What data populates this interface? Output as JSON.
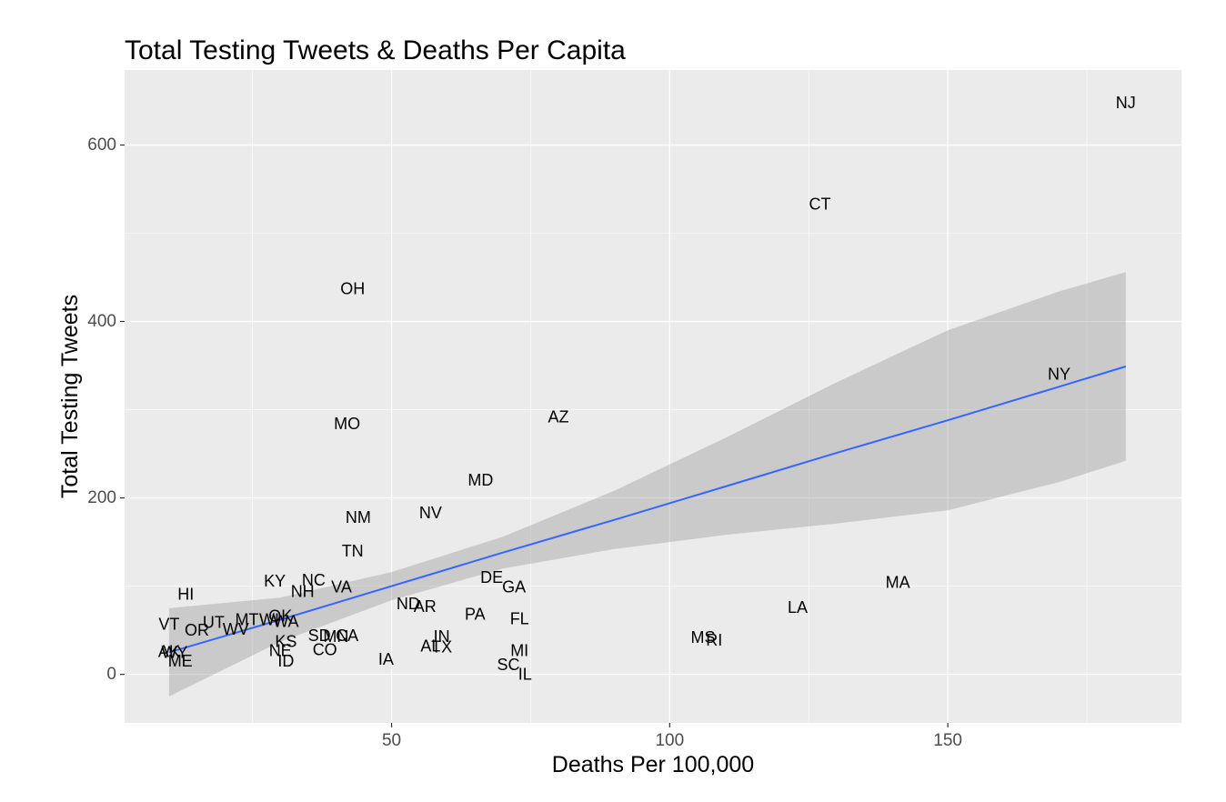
{
  "chart_data": {
    "type": "scatter",
    "title": "Total Testing Tweets & Deaths Per Capita",
    "xlabel": "Deaths Per 100,000",
    "ylabel": "Total Testing Tweets",
    "xlim": [
      2,
      192
    ],
    "ylim": [
      -55,
      685
    ],
    "x_ticks": [
      50,
      100,
      150
    ],
    "y_ticks": [
      0,
      200,
      400,
      600
    ],
    "grid": true,
    "points": [
      {
        "label": "NJ",
        "x": 182,
        "y": 648
      },
      {
        "label": "CT",
        "x": 127,
        "y": 533
      },
      {
        "label": "OH",
        "x": 43,
        "y": 437
      },
      {
        "label": "NY",
        "x": 170,
        "y": 340
      },
      {
        "label": "AZ",
        "x": 80,
        "y": 292
      },
      {
        "label": "MO",
        "x": 42,
        "y": 284
      },
      {
        "label": "MD",
        "x": 66,
        "y": 220
      },
      {
        "label": "NV",
        "x": 57,
        "y": 183
      },
      {
        "label": "NM",
        "x": 44,
        "y": 178
      },
      {
        "label": "TN",
        "x": 43,
        "y": 140
      },
      {
        "label": "KY",
        "x": 29,
        "y": 106
      },
      {
        "label": "NC",
        "x": 36,
        "y": 107
      },
      {
        "label": "VA",
        "x": 41,
        "y": 99
      },
      {
        "label": "NH",
        "x": 34,
        "y": 94
      },
      {
        "label": "DE",
        "x": 68,
        "y": 110
      },
      {
        "label": "GA",
        "x": 72,
        "y": 99
      },
      {
        "label": "MA",
        "x": 141,
        "y": 104
      },
      {
        "label": "HI",
        "x": 13,
        "y": 91
      },
      {
        "label": "ND",
        "x": 53,
        "y": 80
      },
      {
        "label": "AR",
        "x": 56,
        "y": 77
      },
      {
        "label": "LA",
        "x": 123,
        "y": 76
      },
      {
        "label": "PA",
        "x": 65,
        "y": 68
      },
      {
        "label": "FL",
        "x": 73,
        "y": 63
      },
      {
        "label": "OK",
        "x": 30,
        "y": 66
      },
      {
        "label": "WI",
        "x": 28,
        "y": 62
      },
      {
        "label": "MT",
        "x": 24,
        "y": 62
      },
      {
        "label": "UT",
        "x": 18,
        "y": 59
      },
      {
        "label": "VT",
        "x": 10,
        "y": 57
      },
      {
        "label": "WA",
        "x": 31,
        "y": 60
      },
      {
        "label": "OR",
        "x": 15,
        "y": 50
      },
      {
        "label": "WV",
        "x": 22,
        "y": 51
      },
      {
        "label": "SD",
        "x": 37,
        "y": 44
      },
      {
        "label": "MN",
        "x": 40,
        "y": 43
      },
      {
        "label": "CA",
        "x": 42,
        "y": 44
      },
      {
        "label": "MS",
        "x": 106,
        "y": 42
      },
      {
        "label": "RI",
        "x": 108,
        "y": 39
      },
      {
        "label": "KS",
        "x": 31,
        "y": 37
      },
      {
        "label": "IN",
        "x": 59,
        "y": 43
      },
      {
        "label": "AL",
        "x": 57,
        "y": 32
      },
      {
        "label": "TX",
        "x": 59,
        "y": 31
      },
      {
        "label": "NE",
        "x": 30,
        "y": 27
      },
      {
        "label": "CO",
        "x": 38,
        "y": 28
      },
      {
        "label": "MI",
        "x": 73,
        "y": 27
      },
      {
        "label": "AK",
        "x": 10,
        "y": 26
      },
      {
        "label": "WY",
        "x": 11,
        "y": 25
      },
      {
        "label": "ID",
        "x": 31,
        "y": 15
      },
      {
        "label": "ME",
        "x": 12,
        "y": 15
      },
      {
        "label": "IA",
        "x": 49,
        "y": 17
      },
      {
        "label": "SC",
        "x": 71,
        "y": 11
      },
      {
        "label": "IL",
        "x": 74,
        "y": 0
      }
    ],
    "fit": {
      "x": [
        10,
        30,
        50,
        70,
        90,
        110,
        130,
        150,
        170,
        182
      ],
      "y": [
        25,
        62,
        100,
        138,
        175,
        213,
        251,
        288,
        326,
        349
      ],
      "ci_lower": [
        -25,
        37,
        84,
        120,
        142,
        158,
        171,
        186,
        218,
        242
      ],
      "ci_upper": [
        75,
        87,
        116,
        156,
        208,
        268,
        331,
        390,
        434,
        456
      ]
    },
    "colors": {
      "panel": "#ebebeb",
      "grid": "#ffffff",
      "fit_line": "#3366ff",
      "ribbon": "#999999"
    }
  }
}
